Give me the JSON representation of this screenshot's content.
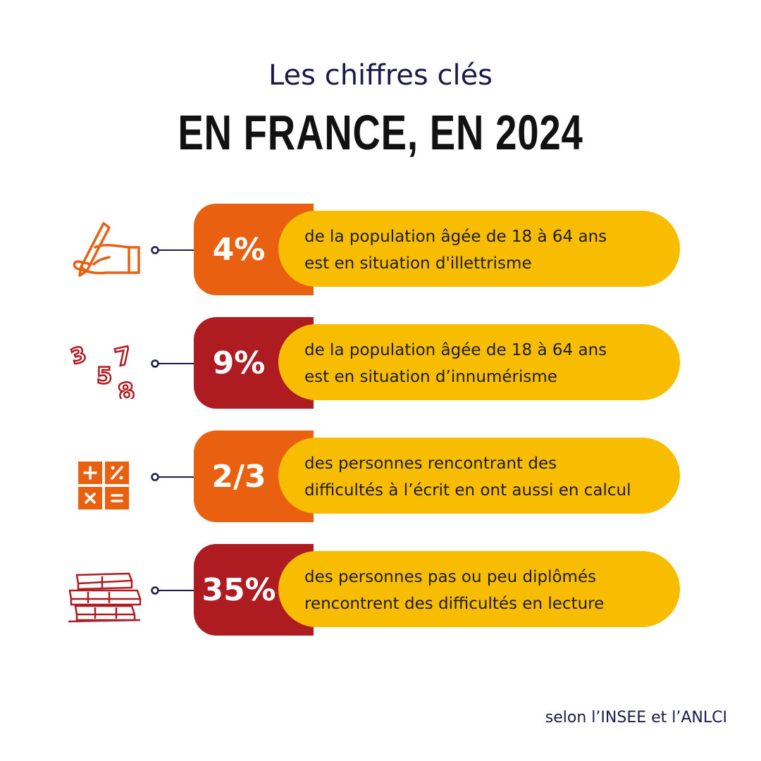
{
  "header": {
    "subtitle": "Les chiffres clés",
    "title": "EN FRANCE, EN 2024"
  },
  "colors": {
    "orange": "#e86010",
    "red": "#ae1c22",
    "yellow": "#f8bc00",
    "navy": "#1b1a4a"
  },
  "stats": [
    {
      "icon": "writing-hand-icon",
      "value": "4%",
      "line1": "de la population âgée de 18 à 64 ans",
      "line2": "est en situation d'illettrisme",
      "color": "orange"
    },
    {
      "icon": "numbers-icon",
      "value": "9%",
      "line1": "de la population âgée de 18 à 64 ans",
      "line2": "est en situation d’innumérisme",
      "color": "red"
    },
    {
      "icon": "calculator-icon",
      "value": "2/3",
      "line1": "des personnes rencontrant des",
      "line2": "difficultés à l’écrit en ont aussi en calcul",
      "color": "orange"
    },
    {
      "icon": "books-icon",
      "value": "35%",
      "line1": "des personnes pas ou peu diplômés",
      "line2": "rencontrent des difficultés en lecture",
      "color": "red"
    }
  ],
  "footer": {
    "source": "selon l’INSEE et l’ANLCI"
  }
}
